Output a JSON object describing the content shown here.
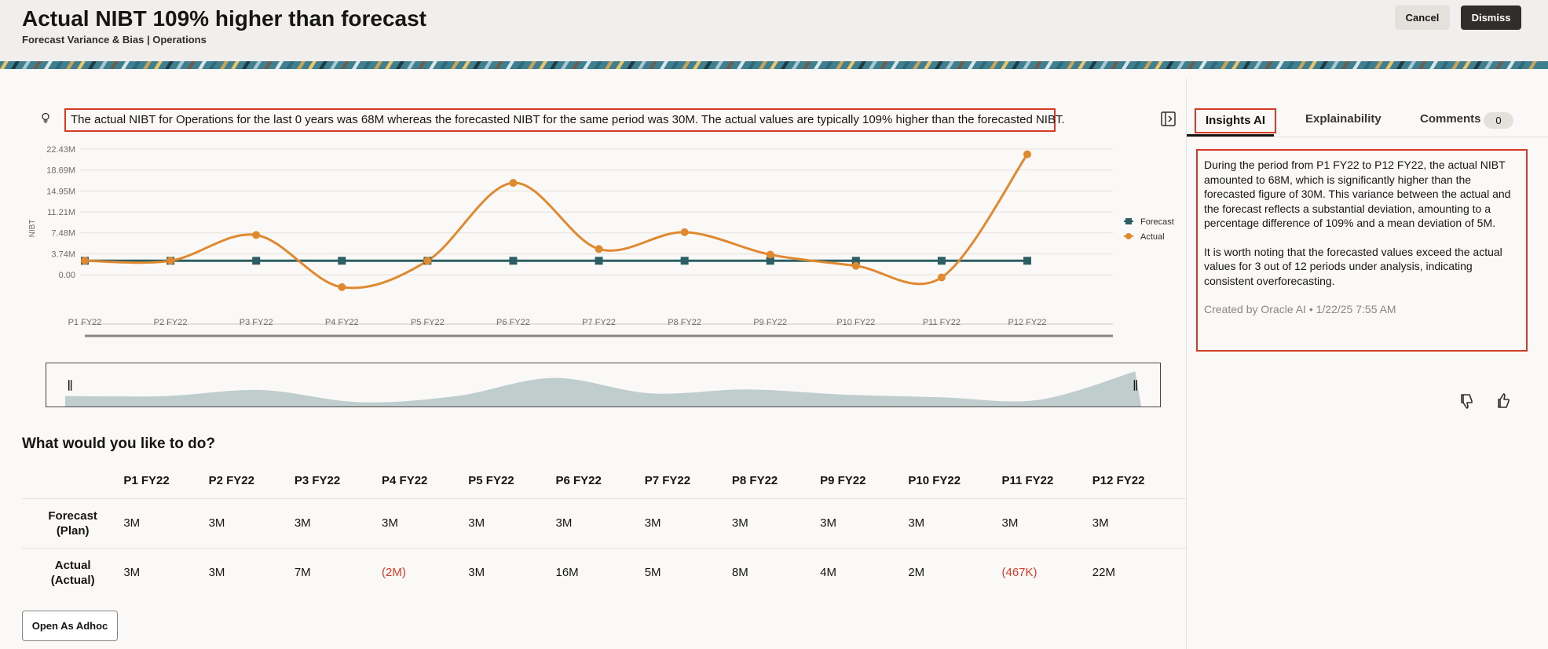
{
  "header": {
    "title": "Actual NIBT 109% higher than forecast",
    "subtitle": "Forecast Variance & Bias | Operations",
    "cancel_label": "Cancel",
    "dismiss_label": "Dismiss"
  },
  "summary": {
    "text": "The actual NIBT for Operations for the last 0 years was 68M whereas the forecasted NIBT for the same period was 30M. The actual values are typically 109% higher than the forecasted NIBT."
  },
  "chart_data": {
    "type": "line",
    "categories": [
      "P1 FY22",
      "P2 FY22",
      "P3 FY22",
      "P4 FY22",
      "P5 FY22",
      "P6 FY22",
      "P7 FY22",
      "P8 FY22",
      "P9 FY22",
      "P10 FY22",
      "P11 FY22",
      "P12 FY22"
    ],
    "series": [
      {
        "name": "Forecast",
        "color": "#2b5f63",
        "marker": "square",
        "values": [
          2.5,
          2.5,
          2.5,
          2.5,
          2.5,
          2.5,
          2.5,
          2.5,
          2.5,
          2.5,
          2.5,
          2.5
        ]
      },
      {
        "name": "Actual",
        "color": "#e0892f",
        "marker": "circle",
        "values": [
          2.5,
          2.5,
          7.1,
          -2.2,
          2.5,
          16.4,
          4.6,
          7.6,
          3.6,
          1.6,
          -0.47,
          21.5
        ]
      }
    ],
    "ylabel": "NIBT",
    "yticks": [
      "22.43M",
      "18.69M",
      "14.95M",
      "11.21M",
      "7.48M",
      "3.74M",
      "0.00"
    ],
    "ytick_values": [
      22.43,
      18.69,
      14.95,
      11.21,
      7.48,
      3.74,
      0
    ],
    "ylim": [
      -3.2,
      22.43
    ],
    "legend_position": "right",
    "grid": true
  },
  "actions": {
    "heading": "What would you like to do?",
    "open_adhoc_label": "Open As Adhoc"
  },
  "table": {
    "columns": [
      "P1 FY22",
      "P2 FY22",
      "P3 FY22",
      "P4 FY22",
      "P5 FY22",
      "P6 FY22",
      "P7 FY22",
      "P8 FY22",
      "P9 FY22",
      "P10 FY22",
      "P11 FY22",
      "P12 FY22"
    ],
    "rows": [
      {
        "label_line1": "Forecast",
        "label_line2": "(Plan)",
        "values": [
          "3M",
          "3M",
          "3M",
          "3M",
          "3M",
          "3M",
          "3M",
          "3M",
          "3M",
          "3M",
          "3M",
          "3M"
        ],
        "negative": [
          false,
          false,
          false,
          false,
          false,
          false,
          false,
          false,
          false,
          false,
          false,
          false
        ]
      },
      {
        "label_line1": "Actual",
        "label_line2": "(Actual)",
        "values": [
          "3M",
          "3M",
          "7M",
          "(2M)",
          "3M",
          "16M",
          "5M",
          "8M",
          "4M",
          "2M",
          "(467K)",
          "22M"
        ],
        "negative": [
          false,
          false,
          false,
          true,
          false,
          false,
          false,
          false,
          false,
          false,
          true,
          false
        ]
      }
    ]
  },
  "right_panel": {
    "tabs": {
      "insights": "Insights AI",
      "explainability": "Explainability",
      "comments": "Comments",
      "comments_count": "0"
    },
    "insight_para1": "During the period from P1 FY22 to P12 FY22, the actual NIBT amounted to 68M, which is significantly higher than the forecasted figure of 30M. This variance between the actual and the forecast reflects a substantial deviation, amounting to a percentage difference of 109% and a mean deviation of 5M.",
    "insight_para2": "It is worth noting that the forecasted values exceed the actual values for 3 out of 12 periods under analysis, indicating consistent overforecasting.",
    "insight_meta": "Created by Oracle AI • 1/22/25 7:55 AM"
  },
  "colors": {
    "accent_red": "#d63b25",
    "forecast": "#2b5f63",
    "actual": "#e0892f",
    "dark_button": "#312d2a"
  }
}
